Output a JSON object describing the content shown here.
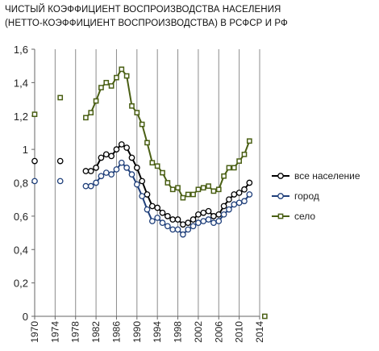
{
  "chart_data": {
    "type": "line",
    "title_lines": [
      "ЧИСТЫЙ КОЭФФИЦИЕНТ ВОСПРОИЗВОДСТВА НАСЕЛЕНИЯ",
      "(НЕТТО-КОЭФФИЦИЕНТ ВОСПРОИЗВОДСТВА) В РСФСР И РФ"
    ],
    "xlim": [
      1970,
      2014
    ],
    "ylim": [
      0,
      1.6
    ],
    "x_ticks": [
      1970,
      1974,
      1978,
      1982,
      1986,
      1990,
      1994,
      1998,
      2002,
      2006,
      2010,
      2014
    ],
    "y_ticks": [
      0,
      0.2,
      0.4,
      0.6,
      0.8,
      1,
      1.2,
      1.4,
      1.6
    ],
    "y_tick_labels": [
      "0",
      "0,2",
      "0,4",
      "0,6",
      "0,8",
      "1",
      "1,2",
      "1,4",
      "1,6"
    ],
    "grid": "vertical",
    "legend_position": "right",
    "series": [
      {
        "name": "все население",
        "color": "#000000",
        "marker": "circle",
        "isolated": [
          [
            1970,
            0.93
          ],
          [
            1975,
            0.93
          ]
        ],
        "x": [
          1980,
          1981,
          1982,
          1983,
          1984,
          1985,
          1986,
          1987,
          1988,
          1989,
          1990,
          1991,
          1992,
          1993,
          1994,
          1995,
          1996,
          1997,
          1998,
          1999,
          2000,
          2001,
          2002,
          2003,
          2004,
          2005,
          2006,
          2007,
          2008,
          2009,
          2010,
          2011,
          2012
        ],
        "values": [
          0.87,
          0.87,
          0.89,
          0.95,
          0.97,
          0.96,
          1.0,
          1.03,
          1.01,
          0.95,
          0.89,
          0.81,
          0.73,
          0.66,
          0.65,
          0.62,
          0.6,
          0.58,
          0.58,
          0.55,
          0.56,
          0.58,
          0.61,
          0.62,
          0.63,
          0.6,
          0.61,
          0.66,
          0.7,
          0.73,
          0.74,
          0.76,
          0.8
        ]
      },
      {
        "name": "город",
        "color": "#1f3f7a",
        "marker": "circle",
        "isolated": [
          [
            1970,
            0.81
          ],
          [
            1975,
            0.81
          ]
        ],
        "x": [
          1980,
          1981,
          1982,
          1983,
          1984,
          1985,
          1986,
          1987,
          1988,
          1989,
          1990,
          1991,
          1992,
          1993,
          1994,
          1995,
          1996,
          1997,
          1998,
          1999,
          2000,
          2001,
          2002,
          2003,
          2004,
          2005,
          2006,
          2007,
          2008,
          2009,
          2010,
          2011,
          2012
        ],
        "values": [
          0.78,
          0.78,
          0.8,
          0.84,
          0.86,
          0.85,
          0.88,
          0.92,
          0.89,
          0.85,
          0.79,
          0.72,
          0.64,
          0.57,
          0.59,
          0.56,
          0.54,
          0.52,
          0.52,
          0.49,
          0.52,
          0.54,
          0.56,
          0.57,
          0.58,
          0.56,
          0.57,
          0.61,
          0.64,
          0.67,
          0.68,
          0.69,
          0.73
        ]
      },
      {
        "name": "село",
        "color": "#4a5f14",
        "marker": "square",
        "isolated": [
          [
            1970,
            1.21
          ],
          [
            1975,
            1.31
          ],
          [
            2015,
            0
          ]
        ],
        "x": [
          1980,
          1981,
          1982,
          1983,
          1984,
          1985,
          1986,
          1987,
          1988,
          1989,
          1990,
          1991,
          1992,
          1993,
          1994,
          1995,
          1996,
          1997,
          1998,
          1999,
          2000,
          2001,
          2002,
          2003,
          2004,
          2005,
          2006,
          2007,
          2008,
          2009,
          2010,
          2011,
          2012
        ],
        "values": [
          1.19,
          1.22,
          1.29,
          1.37,
          1.4,
          1.38,
          1.43,
          1.48,
          1.44,
          1.26,
          1.22,
          1.15,
          1.04,
          0.92,
          0.9,
          0.86,
          0.8,
          0.76,
          0.77,
          0.71,
          0.73,
          0.73,
          0.76,
          0.77,
          0.78,
          0.75,
          0.76,
          0.84,
          0.89,
          0.89,
          0.93,
          0.97,
          1.05
        ]
      }
    ]
  }
}
